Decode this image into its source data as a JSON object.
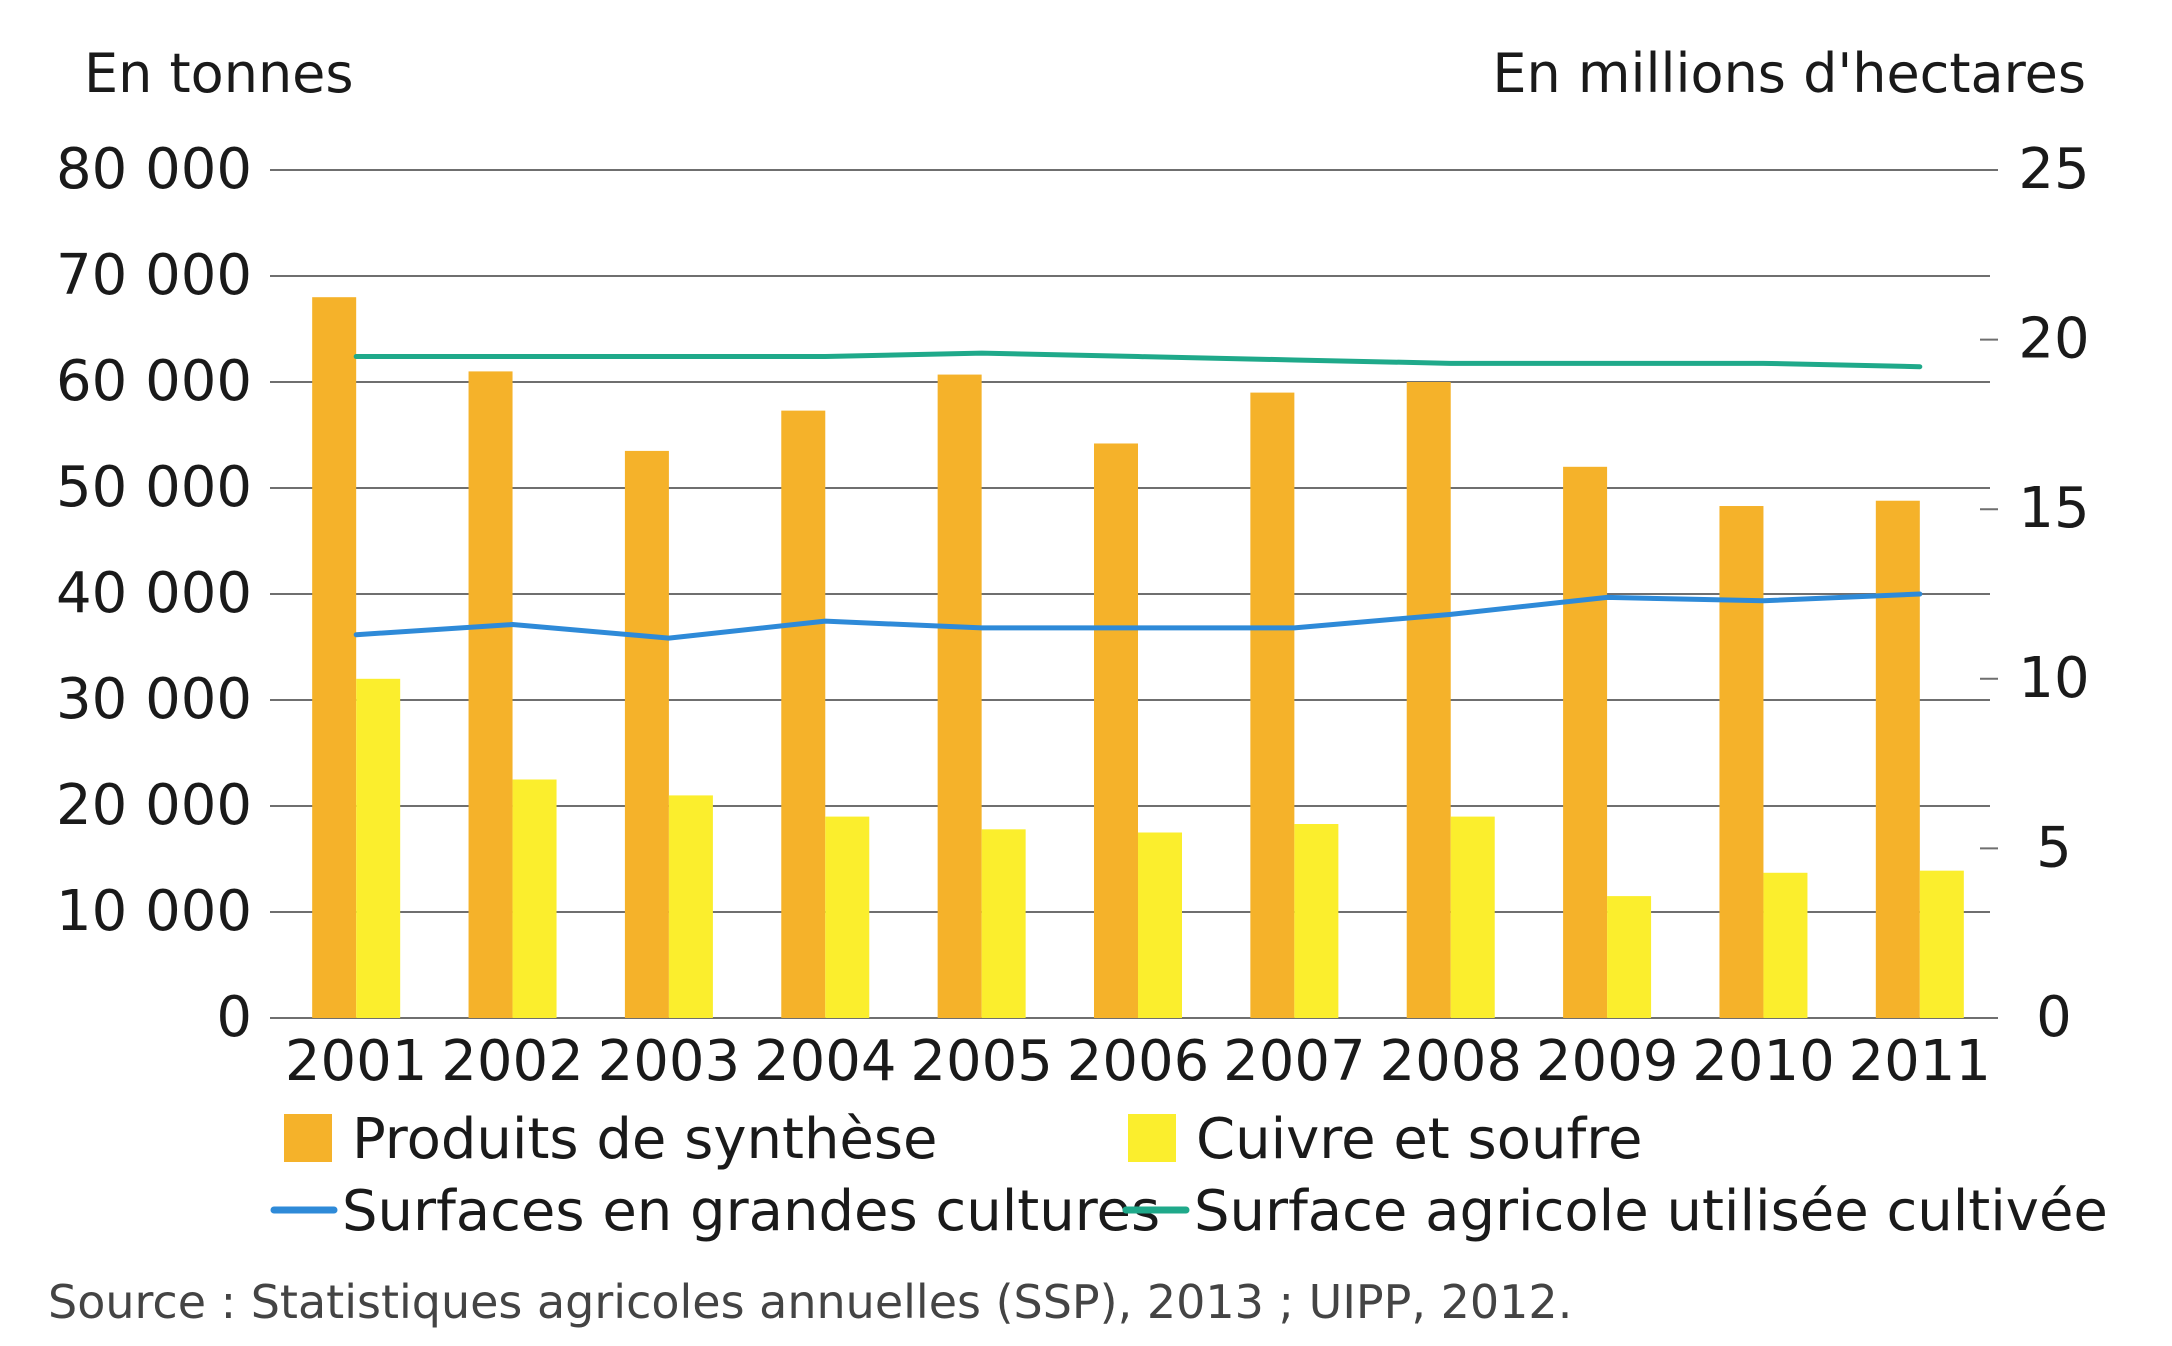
{
  "chart_data": {
    "type": "bar",
    "left_axis_title": "En tonnes",
    "right_axis_title": "En millions d'hectares",
    "categories": [
      "2001",
      "2002",
      "2003",
      "2004",
      "2005",
      "2006",
      "2007",
      "2008",
      "2009",
      "2010",
      "2011"
    ],
    "left_ylim": [
      0,
      80000
    ],
    "left_ticks": [
      {
        "value": 0,
        "label": "0"
      },
      {
        "value": 10000,
        "label": "10 000"
      },
      {
        "value": 20000,
        "label": "20 000"
      },
      {
        "value": 30000,
        "label": "30 000"
      },
      {
        "value": 40000,
        "label": "40 000"
      },
      {
        "value": 50000,
        "label": "50 000"
      },
      {
        "value": 60000,
        "label": "60 000"
      },
      {
        "value": 70000,
        "label": "70 000"
      },
      {
        "value": 80000,
        "label": "80 000"
      }
    ],
    "right_ylim": [
      0,
      25
    ],
    "right_ticks": [
      {
        "value": 0,
        "label": "0"
      },
      {
        "value": 5,
        "label": "5"
      },
      {
        "value": 10,
        "label": "10"
      },
      {
        "value": 15,
        "label": "15"
      },
      {
        "value": 20,
        "label": "20"
      },
      {
        "value": 25,
        "label": "25"
      }
    ],
    "grid": true,
    "bar_series": [
      {
        "name": "Produits de synthèse",
        "color": "#F5B22A",
        "values": [
          68000,
          61000,
          53500,
          57300,
          60700,
          54200,
          59000,
          60000,
          52000,
          48300,
          48800
        ]
      },
      {
        "name": "Cuivre et soufre",
        "color": "#FBEE2D",
        "values": [
          32000,
          22500,
          21000,
          19000,
          17800,
          17500,
          18300,
          19000,
          11500,
          13700,
          13900
        ]
      }
    ],
    "line_series": [
      {
        "name": "Surfaces en grandes cultures",
        "color": "#2E8AD8",
        "axis": "right",
        "values": [
          11.3,
          11.6,
          11.2,
          11.7,
          11.5,
          11.5,
          11.5,
          11.9,
          12.4,
          12.3,
          12.5
        ]
      },
      {
        "name": "Surface agricole utilisée cultivée",
        "color": "#1FA98A",
        "axis": "right",
        "values": [
          19.5,
          19.5,
          19.5,
          19.5,
          19.6,
          19.5,
          19.4,
          19.3,
          19.3,
          19.3,
          19.2
        ]
      }
    ],
    "legend_placement": "bottom"
  },
  "source": "Source : Statistiques agricoles annuelles (SSP), 2013 ; UIPP, 2012."
}
